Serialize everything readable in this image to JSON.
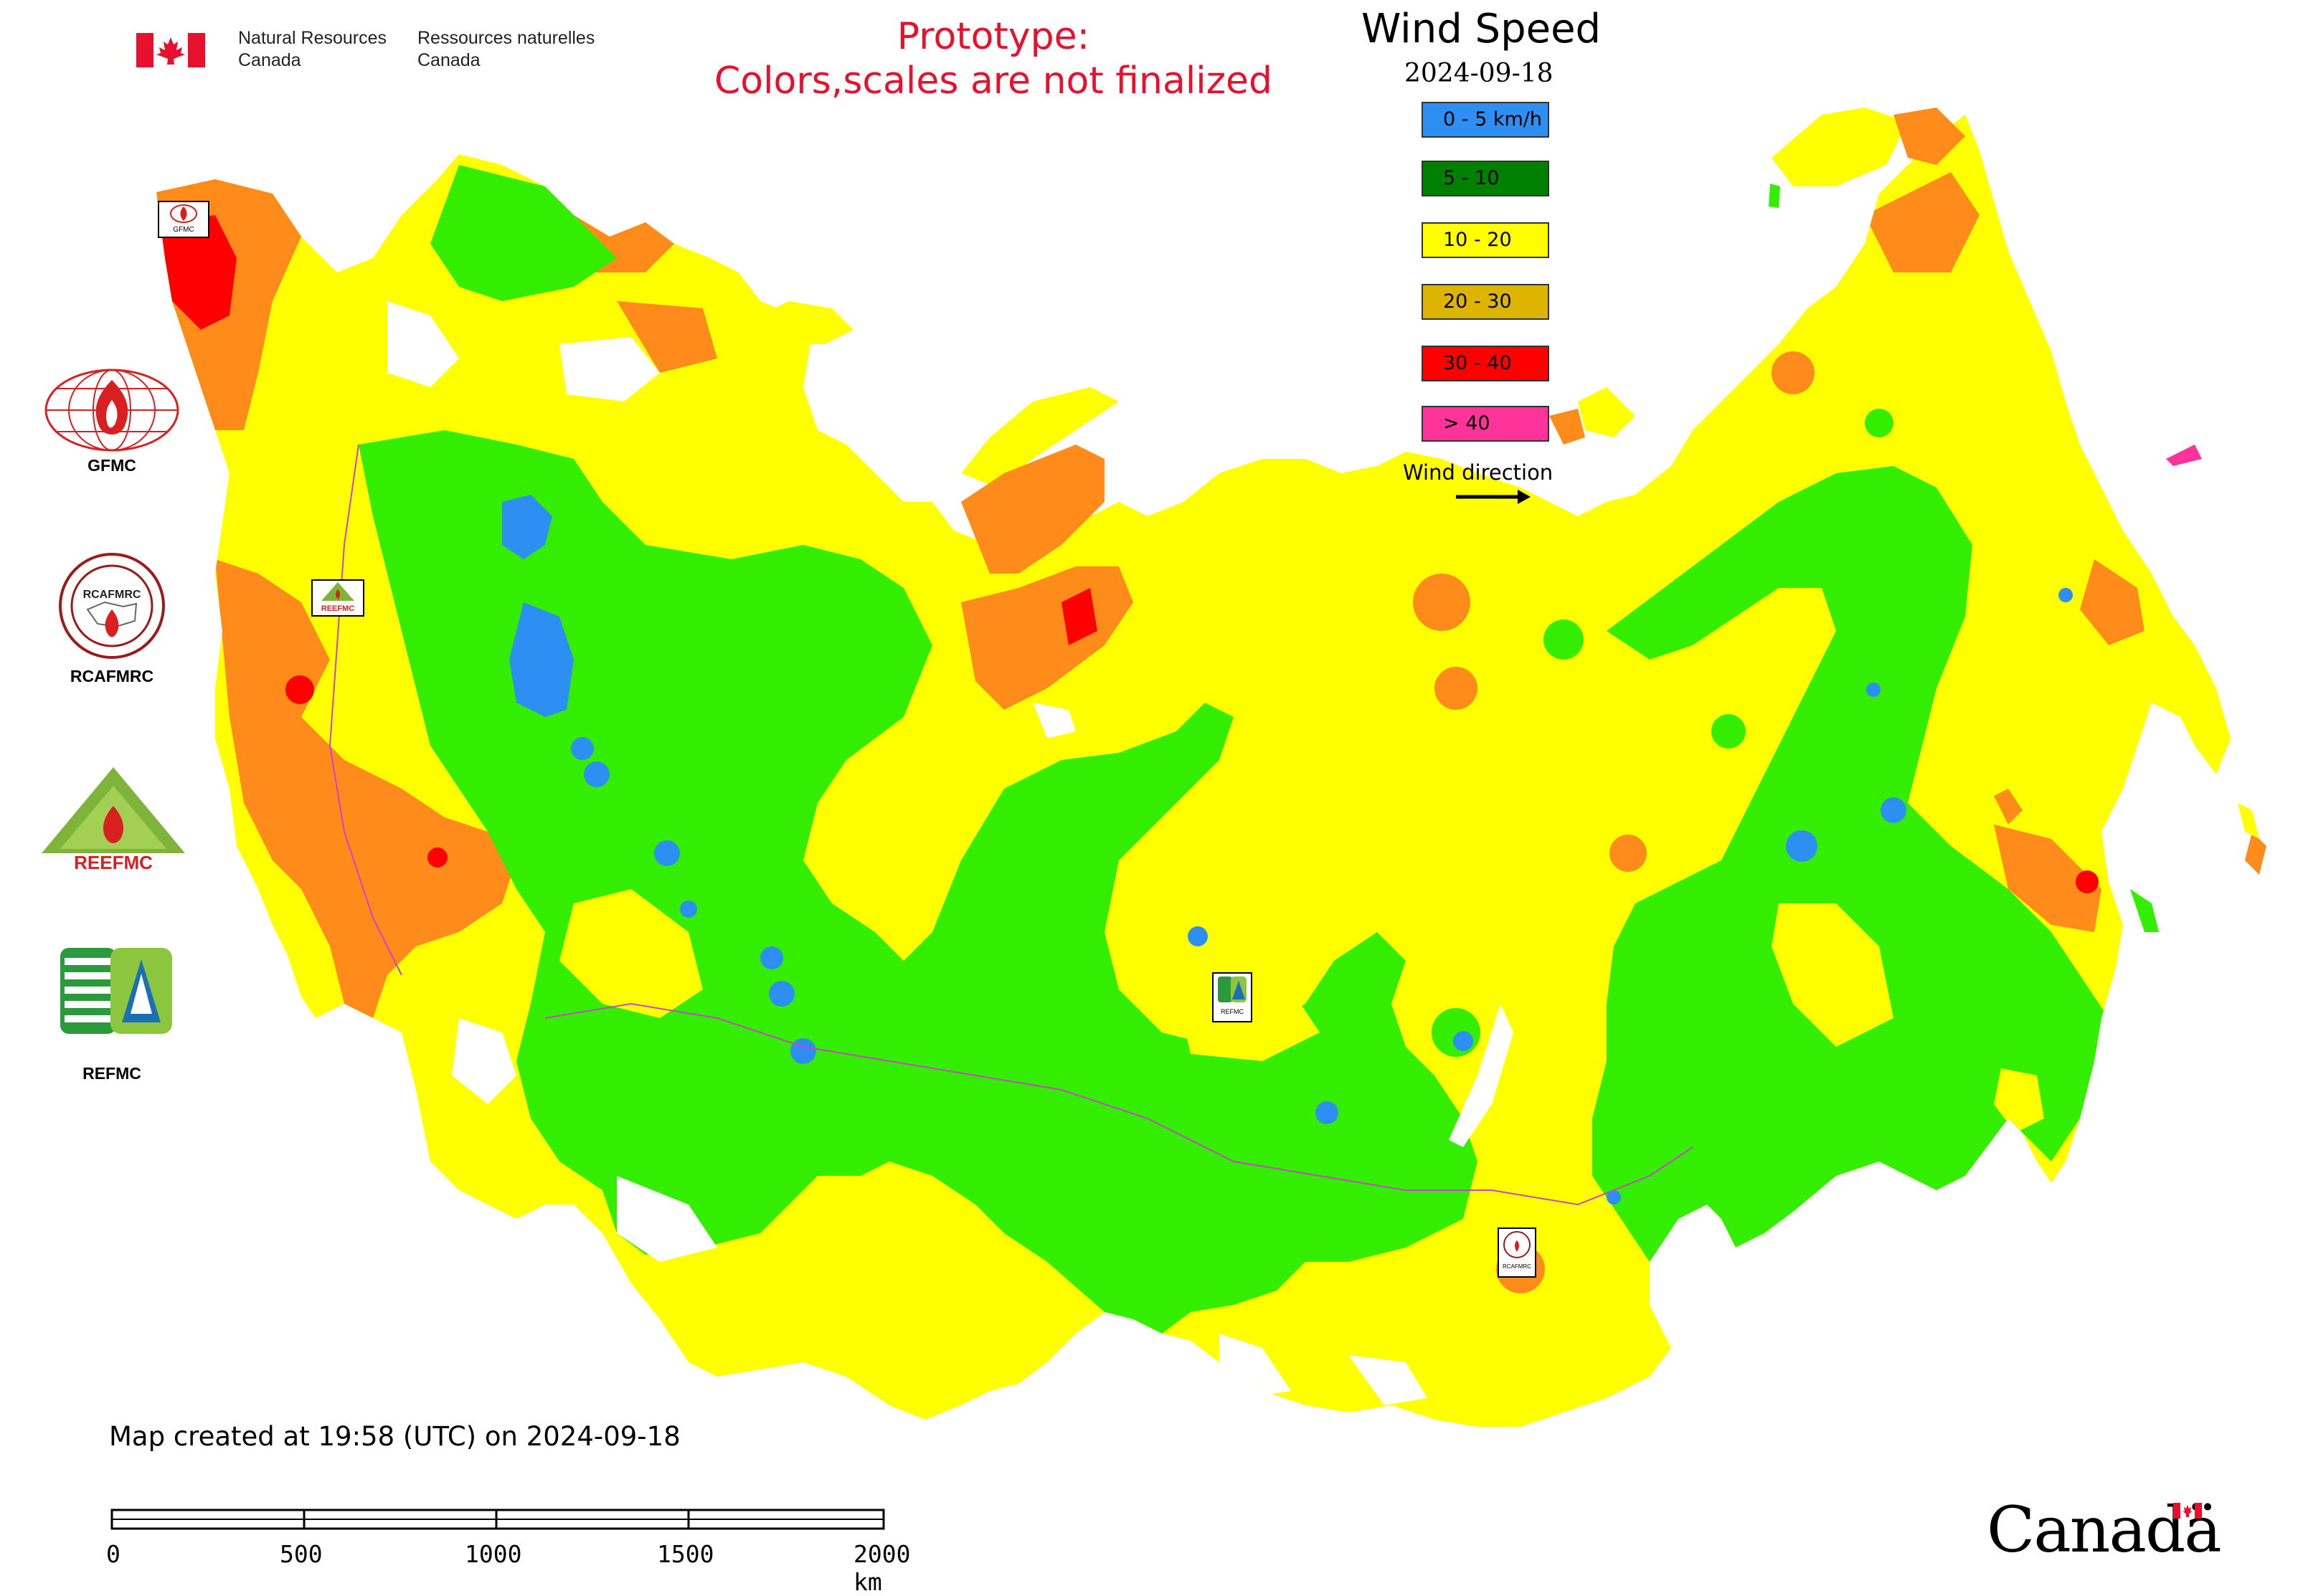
{
  "header": {
    "gov_en": "Natural Resources\nCanada",
    "gov_fr": "Ressources naturelles\nCanada",
    "prototype_line1": "Prototype:",
    "prototype_line2": "Colors,scales are not finalized"
  },
  "legend": {
    "title": "Wind Speed",
    "date": "2024-09-18",
    "classes": [
      {
        "label": "0 - 5 km/h",
        "color": "#2e8ff2"
      },
      {
        "label": "5 - 10",
        "color": "#008000"
      },
      {
        "label": "10 - 20",
        "color": "#ffff00"
      },
      {
        "label": "20 - 30",
        "color": "#ddb500"
      },
      {
        "label": "30 - 40",
        "color": "#ff0000"
      },
      {
        "label": "> 40",
        "color": "#ff3399"
      }
    ],
    "wind_direction_label": "Wind direction"
  },
  "map_colors": {
    "calm": "#2e8ff2",
    "green": "#33ee00",
    "yellow": "#ffff00",
    "orange": "#ff8c1a",
    "red": "#ff0000",
    "border": "#cc44cc"
  },
  "logos": {
    "gfmc_label": "GFMC",
    "rcafmrc_label": "RCAFMRC",
    "reefmc_label": "REEFMC",
    "refmc_label": "REFMC",
    "rcafmrc_badge": "RCAFMRC",
    "reefmc_badge": "REEFMC"
  },
  "map_badges": {
    "gfmc": "GFMC",
    "reefmc": "REEFMC",
    "refmc": "REFMC",
    "rcafmrc": "RCAFMRC"
  },
  "footer": {
    "map_created": "Map created at 19:58 (UTC) on 2024-09-18",
    "scale_labels": [
      "0",
      "500",
      "1000",
      "1500",
      "2000 km"
    ],
    "canada_wordmark": "Canadä"
  }
}
